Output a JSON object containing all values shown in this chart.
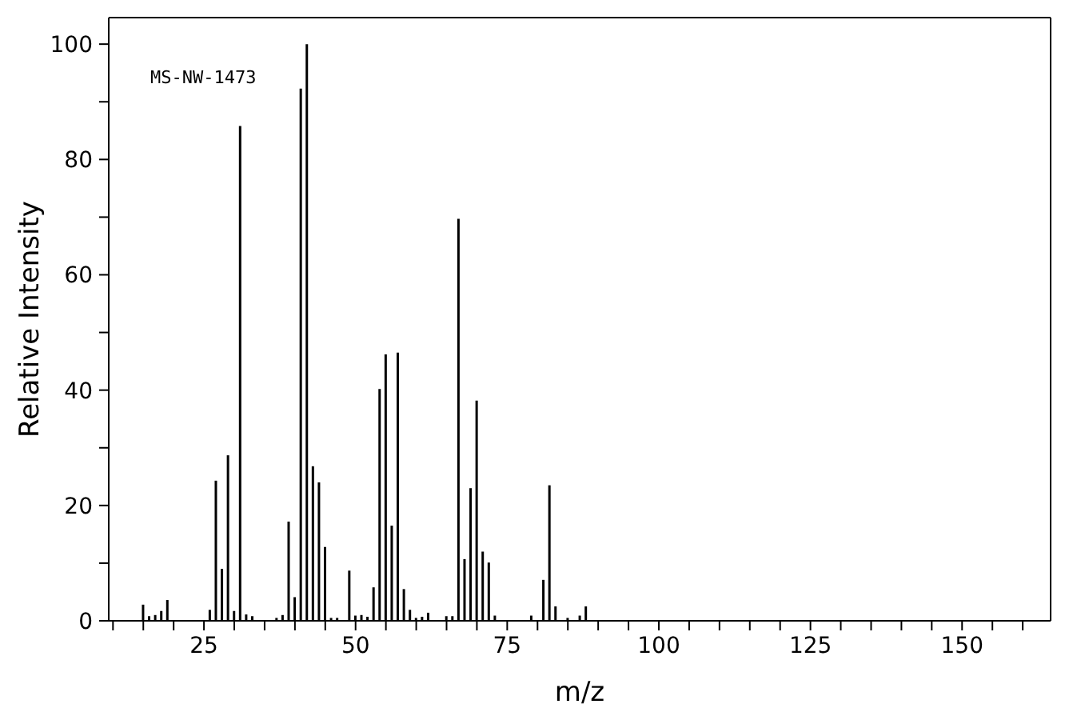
{
  "chart_data": {
    "type": "bar",
    "xlabel": "m/z",
    "ylabel": "Relative Intensity",
    "annotations": [
      "MS-NW-1473"
    ],
    "x": [
      15,
      16,
      17,
      18,
      19,
      26,
      27,
      28,
      29,
      30,
      31,
      32,
      33,
      37,
      38,
      39,
      40,
      41,
      42,
      43,
      44,
      45,
      46,
      47,
      48,
      49,
      50,
      51,
      52,
      53,
      54,
      55,
      56,
      57,
      58,
      59,
      60,
      61,
      62,
      63,
      64,
      65,
      66,
      67,
      68,
      69,
      70,
      71,
      72,
      73,
      75,
      77,
      79,
      81,
      82,
      83,
      85,
      87,
      88
    ],
    "values": [
      2.8,
      0.8,
      1,
      1.7,
      3.6,
      1.9,
      24.3,
      9,
      28.7,
      1.7,
      85.8,
      1.1,
      0.8,
      0.5,
      1,
      17.2,
      4.1,
      92.3,
      100,
      26.8,
      24,
      12.8,
      0.5,
      0.5,
      null,
      8.7,
      0.9,
      1,
      0.7,
      5.8,
      40.2,
      46.2,
      16.5,
      46.5,
      5.5,
      1.9,
      0.5,
      0.7,
      1.4,
      null,
      null,
      0.8,
      0.8,
      69.7,
      10.7,
      23,
      38.2,
      12,
      10.1,
      0.9,
      null,
      null,
      0.9,
      7.1,
      23.5,
      2.5,
      0.5,
      0.9,
      2.5
    ],
    "color": "#000000",
    "xlim": [
      9.3,
      164.6
    ],
    "xticks": [
      {
        "value": 10,
        "label": null
      },
      {
        "value": 15,
        "label": null
      },
      {
        "value": 20,
        "label": null
      },
      25,
      {
        "value": 30,
        "label": null
      },
      {
        "value": 35,
        "label": null
      },
      {
        "value": 40,
        "label": null
      },
      {
        "value": 45,
        "label": null
      },
      50,
      {
        "value": 55,
        "label": null
      },
      {
        "value": 60,
        "label": null
      },
      {
        "value": 65,
        "label": null
      },
      {
        "value": 70,
        "label": null
      },
      75,
      {
        "value": 80,
        "label": null
      },
      {
        "value": 85,
        "label": null
      },
      {
        "value": 90,
        "label": null
      },
      {
        "value": 95,
        "label": null
      },
      100,
      {
        "value": 105,
        "label": null
      },
      {
        "value": 110,
        "label": null
      },
      {
        "value": 115,
        "label": null
      },
      {
        "value": 120,
        "label": null
      },
      125,
      {
        "value": 130,
        "label": null
      },
      {
        "value": 135,
        "label": null
      },
      {
        "value": 140,
        "label": null
      },
      {
        "value": 145,
        "label": null
      },
      150,
      {
        "value": 155,
        "label": null
      },
      {
        "value": 160,
        "label": null
      }
    ],
    "ylim": [
      0,
      104.6
    ],
    "yticks": [
      0,
      {
        "value": 10,
        "label": null
      },
      20,
      {
        "value": 30,
        "label": null
      },
      40,
      {
        "value": 50,
        "label": null
      },
      60,
      {
        "value": 70,
        "label": null
      },
      80,
      {
        "value": 90,
        "label": null
      },
      100
    ],
    "grid": false
  }
}
